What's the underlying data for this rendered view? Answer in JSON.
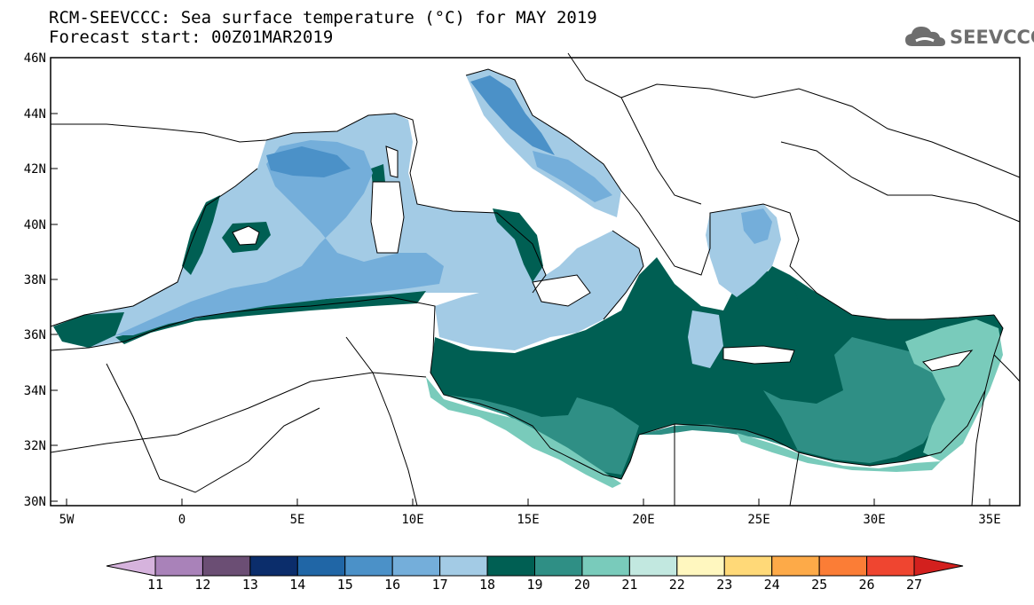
{
  "title": {
    "line1": "RCM-SEEVCCC: Sea surface temperature (°C) for MAY 2019",
    "line2": "Forecast start: 00Z01MAR2019"
  },
  "logo": {
    "text": "SEEVCCC",
    "icon": "cloud-icon"
  },
  "axes": {
    "x_ticks": [
      "5W",
      "0",
      "5E",
      "10E",
      "15E",
      "20E",
      "25E",
      "30E",
      "35E"
    ],
    "y_ticks": [
      "46N",
      "44N",
      "42N",
      "40N",
      "38N",
      "36N",
      "34N",
      "32N",
      "30N"
    ]
  },
  "colorbar": {
    "labels": [
      "11",
      "12",
      "13",
      "14",
      "15",
      "16",
      "17",
      "18",
      "19",
      "20",
      "21",
      "22",
      "23",
      "24",
      "25",
      "26",
      "27"
    ],
    "colors": [
      "#d6b3dd",
      "#a982b9",
      "#6b4e74",
      "#0b2d6b",
      "#2066a6",
      "#4b91c8",
      "#74aeda",
      "#a3cbe5",
      "#005f53",
      "#2f8f85",
      "#79cbbb",
      "#c2e8e0",
      "#fff7bf",
      "#ffd978",
      "#fdaa48",
      "#fb7d36",
      "#ef4530",
      "#d3201e"
    ]
  },
  "legend_colors": {
    "land": "#ffffff",
    "sst_17_18": "#a3cbe5",
    "sst_16_17": "#74aeda",
    "sst_15_16": "#4b91c8",
    "sst_18_19": "#005f53",
    "sst_19_20": "#2f8f85",
    "sst_20_21": "#79cbbb"
  }
}
